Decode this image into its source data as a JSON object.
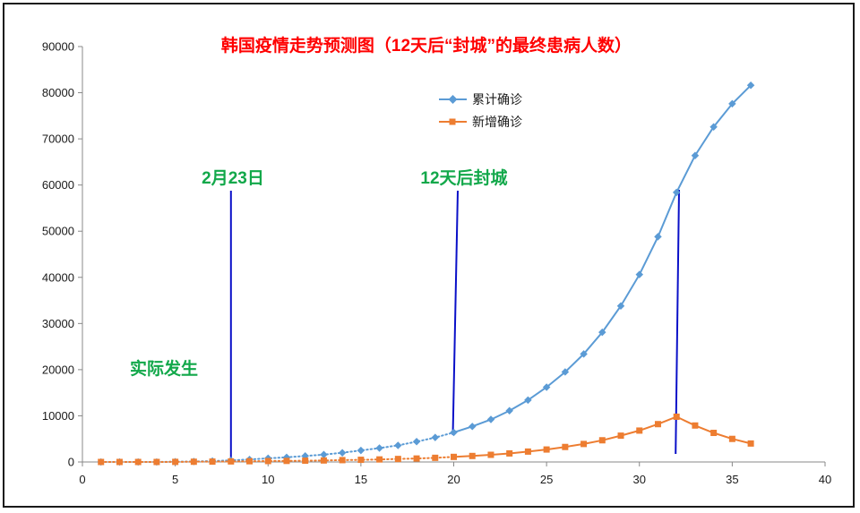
{
  "chart_data": {
    "type": "line",
    "title": "韩国疫情走势预测图（12天后“封城”的最终患病人数）",
    "xlim": [
      0,
      40
    ],
    "ylim": [
      0,
      90000
    ],
    "x_ticks": [
      "0",
      "5",
      "10",
      "15",
      "20",
      "25",
      "30",
      "35",
      "40"
    ],
    "y_ticks": [
      "0",
      "10000",
      "20000",
      "30000",
      "40000",
      "50000",
      "60000",
      "70000",
      "80000",
      "90000"
    ],
    "x": [
      1,
      2,
      3,
      4,
      5,
      6,
      7,
      8,
      9,
      10,
      11,
      12,
      13,
      14,
      15,
      16,
      17,
      18,
      19,
      20,
      21,
      22,
      23,
      24,
      25,
      26,
      27,
      28,
      29,
      30,
      31,
      32,
      33,
      34,
      35,
      36
    ],
    "series": [
      {
        "name": "累计确诊",
        "color": "#5b9bd5",
        "marker": "diamond",
        "values": [
          0,
          0,
          0,
          0,
          50,
          100,
          200,
          350,
          550,
          800,
          1000,
          1300,
          1600,
          2000,
          2500,
          3000,
          3600,
          4400,
          5300,
          6400,
          7700,
          9200,
          11100,
          13400,
          16200,
          19500,
          23400,
          28100,
          33800,
          40600,
          48800,
          58400,
          66400,
          72600,
          77600,
          81600
        ]
      },
      {
        "name": "新增确诊",
        "color": "#ed7d31",
        "marker": "square",
        "values": [
          0,
          0,
          0,
          0,
          20,
          50,
          80,
          120,
          160,
          200,
          230,
          280,
          330,
          400,
          470,
          550,
          650,
          750,
          900,
          1100,
          1300,
          1550,
          1850,
          2250,
          2700,
          3250,
          3900,
          4700,
          5700,
          6800,
          8200,
          9800,
          7900,
          6300,
          5000,
          4000
        ]
      }
    ],
    "projection_start_x": 20,
    "annotations": [
      {
        "text": "2月23日",
        "line_x": 8
      },
      {
        "text": "12天后封城",
        "line_x": 20
      },
      {
        "text": "实际发生"
      },
      {
        "line_x": 32
      }
    ],
    "legend_position": "top-center",
    "grid": false,
    "line_color": "#0a10c8"
  }
}
